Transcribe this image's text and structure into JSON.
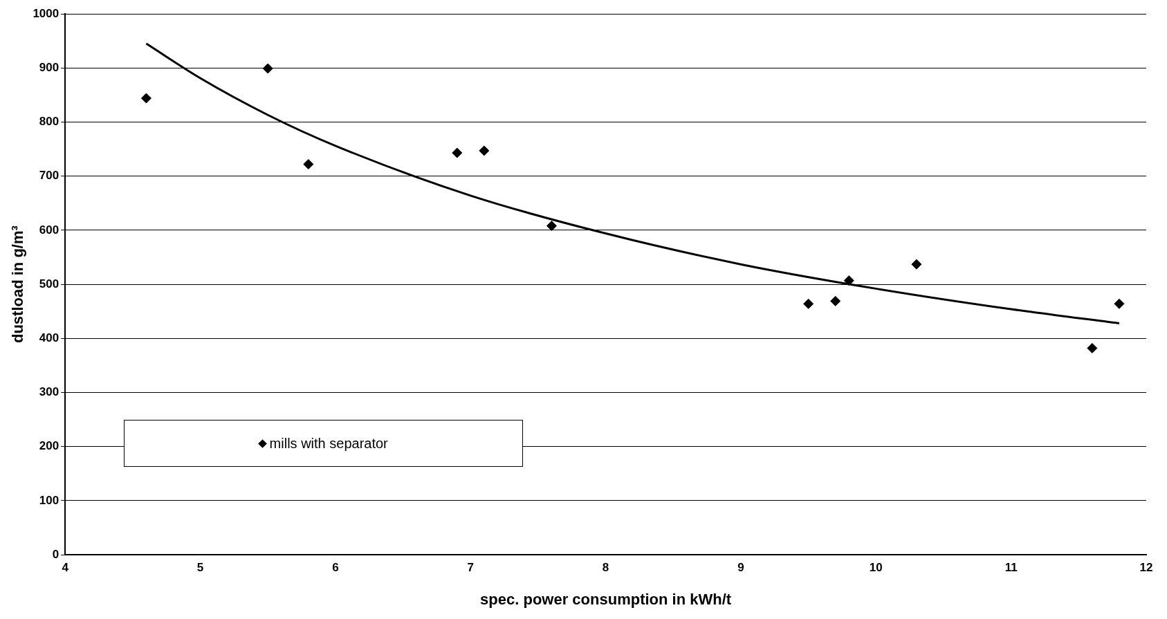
{
  "chart_data": {
    "type": "scatter",
    "xlabel": "spec. power consumption in kWh/t",
    "ylabel": "dustload in g/m³",
    "xlim": [
      4,
      12
    ],
    "xticks": [
      4,
      5,
      6,
      7,
      8,
      9,
      10,
      11,
      12
    ],
    "ylim": [
      0,
      1000
    ],
    "yticks": [
      0,
      100,
      200,
      300,
      400,
      500,
      600,
      700,
      800,
      900,
      1000
    ],
    "grid": "y",
    "legend": "bottom left",
    "series": [
      {
        "name": "mills with separator",
        "color": "#000000",
        "marker": "diamond",
        "x": [
          4.6,
          5.5,
          5.8,
          6.9,
          7.1,
          7.6,
          9.5,
          9.7,
          9.8,
          10.3,
          11.6,
          11.8
        ],
        "values": [
          844,
          899,
          722,
          743,
          747,
          608,
          464,
          469,
          507,
          537,
          382,
          464
        ]
      },
      {
        "type": "line",
        "color": "#000000",
        "marker": "none",
        "x": [
          4.6,
          5,
          5.5,
          6,
          7,
          8,
          9,
          10,
          11,
          11.8
        ],
        "values": [
          945,
          881,
          813,
          756,
          664,
          594,
          537,
          492,
          454,
          428
        ]
      }
    ]
  }
}
